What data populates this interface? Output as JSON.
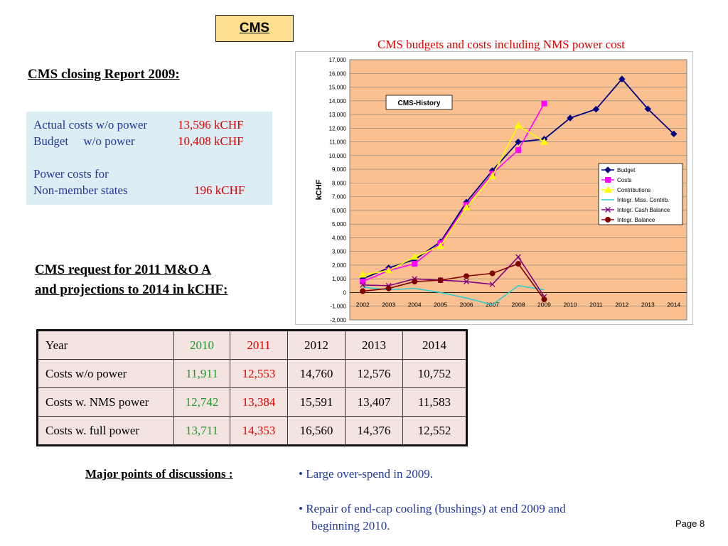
{
  "header": {
    "badge": "CMS"
  },
  "closing_report": {
    "title": "CMS closing Report 2009:",
    "rows": [
      {
        "label": "Actual costs w/o power",
        "value": "13,596 kCHF"
      },
      {
        "label": "Budget     w/o power",
        "value": "10,408 kCHF"
      },
      {
        "label": "Power costs for",
        "value": ""
      },
      {
        "label": "Non-member states",
        "value": "196 kCHF"
      }
    ]
  },
  "request": {
    "line1": "CMS request for 2011 M&O A",
    "line2": "and projections to 2014 in kCHF:"
  },
  "table": {
    "header": [
      "Year",
      "2010",
      "2011",
      "2012",
      "2013",
      "2014"
    ],
    "rows": [
      [
        "Costs w/o power",
        "11,911",
        "12,553",
        "14,760",
        "12,576",
        "10,752"
      ],
      [
        "Costs w. NMS power",
        "12,742",
        "13,384",
        "15,591",
        "13,407",
        "11,583"
      ],
      [
        "Costs w. full power",
        "13,711",
        "14,353",
        "16,560",
        "14,376",
        "12,552"
      ]
    ]
  },
  "discussion": {
    "label": "Major points of discussions :",
    "bullets": [
      "Large over-spend in 2009.",
      "Repair of end-cap cooling (bushings) at end 2009 and",
      "beginning 2010."
    ]
  },
  "footer": {
    "page": "Page 8"
  },
  "chart_data": {
    "type": "line",
    "title": "CMS budgets and costs including NMS power cost",
    "inner_title": "CMS-History",
    "ylabel": "kCHF",
    "xlabel": "",
    "ylim": [
      -2000,
      17000
    ],
    "ytick_step": 1000,
    "y_ticks": [
      "-2,000",
      "-1,000",
      "0",
      "1,000",
      "2,000",
      "3,000",
      "4,000",
      "5,000",
      "6,000",
      "7,000",
      "8,000",
      "9,000",
      "10,000",
      "11,000",
      "12,000",
      "13,000",
      "14,000",
      "15,000",
      "16,000",
      "17,000"
    ],
    "categories": [
      "2002",
      "2003",
      "2004",
      "2005",
      "2006",
      "2007",
      "2008",
      "2009",
      "2010",
      "2011",
      "2012",
      "2013",
      "2014"
    ],
    "legend_position": "right",
    "plot_background": "#fac090",
    "series": [
      {
        "name": "Budget",
        "color": "#000080",
        "marker": "diamond",
        "values": [
          1000,
          1800,
          2400,
          3700,
          6600,
          8900,
          11000,
          11200,
          12742,
          13384,
          15591,
          13407,
          11583
        ]
      },
      {
        "name": "Costs",
        "color": "#ff00ff",
        "marker": "square",
        "values": [
          800,
          1600,
          2100,
          3600,
          6400,
          8700,
          10400,
          13800,
          null,
          null,
          null,
          null,
          null
        ]
      },
      {
        "name": "Contributions",
        "color": "#ffff00",
        "marker": "triangle",
        "values": [
          1300,
          1600,
          2600,
          3400,
          6200,
          8500,
          12200,
          11000,
          null,
          null,
          null,
          null,
          null
        ]
      },
      {
        "name": "Integr. Miss. Contrib.",
        "color": "#33cccc",
        "marker": "none",
        "values": [
          400,
          200,
          300,
          0,
          -400,
          -900,
          500,
          200,
          null,
          null,
          null,
          null,
          null
        ]
      },
      {
        "name": "Integr. Cash Balance",
        "color": "#800080",
        "marker": "x",
        "values": [
          550,
          500,
          1000,
          900,
          800,
          600,
          2600,
          -300,
          null,
          null,
          null,
          null,
          null
        ]
      },
      {
        "name": "Integr. Balance",
        "color": "#800000",
        "marker": "circle",
        "values": [
          100,
          300,
          800,
          900,
          1200,
          1400,
          2100,
          -500,
          null,
          null,
          null,
          null,
          null
        ]
      }
    ]
  }
}
